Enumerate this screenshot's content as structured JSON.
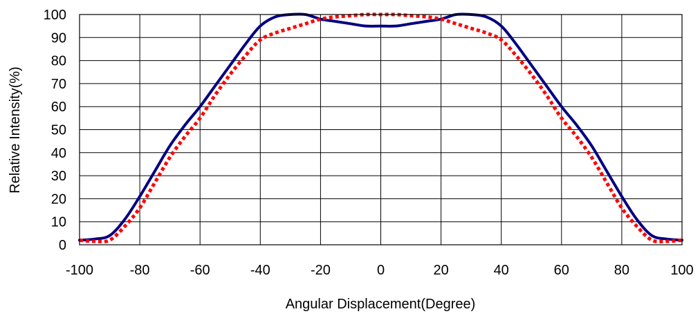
{
  "chart_data": {
    "type": "line",
    "title": "",
    "xlabel": "Angular Displacement(Degree)",
    "ylabel": "Relative Intensity(%)",
    "xlim": [
      -100,
      100
    ],
    "ylim": [
      0,
      100
    ],
    "xticks": [
      "-100",
      "-80",
      "-60",
      "-40",
      "-20",
      "0",
      "20",
      "40",
      "60",
      "80",
      "100"
    ],
    "yticks": [
      "0",
      "10",
      "20",
      "30",
      "40",
      "50",
      "60",
      "70",
      "80",
      "90",
      "100"
    ],
    "grid": true,
    "series": [
      {
        "color": "#000080",
        "style": "solid",
        "x": [
          -100,
          -95,
          -90,
          -85,
          -80,
          -75,
          -70,
          -65,
          -60,
          -55,
          -50,
          -45,
          -40,
          -35,
          -30,
          -25,
          -20,
          -15,
          -10,
          -5,
          0,
          5,
          10,
          15,
          20,
          25,
          30,
          35,
          40,
          45,
          50,
          55,
          60,
          65,
          70,
          75,
          80,
          85,
          90,
          95,
          100
        ],
        "y": [
          2,
          2.5,
          4,
          11,
          21,
          32,
          43,
          52,
          60,
          69,
          78,
          87,
          95,
          99,
          100,
          100,
          98,
          97,
          96,
          95,
          95,
          95,
          96,
          97,
          98,
          100,
          100,
          99,
          95,
          87,
          78,
          69,
          60,
          52,
          43,
          32,
          21,
          11,
          4,
          2.5,
          2
        ]
      },
      {
        "color": "#ff0000",
        "style": "dotted",
        "x": [
          -100,
          -95,
          -90,
          -85,
          -80,
          -75,
          -70,
          -65,
          -60,
          -55,
          -50,
          -45,
          -40,
          -35,
          -30,
          -25,
          -20,
          -15,
          -10,
          -5,
          0,
          5,
          10,
          15,
          20,
          25,
          30,
          35,
          40,
          45,
          50,
          55,
          60,
          65,
          70,
          75,
          80,
          85,
          90,
          95,
          100
        ],
        "y": [
          2,
          1.5,
          2,
          8,
          16,
          27,
          38,
          47,
          55,
          65,
          74,
          82,
          89,
          92,
          94,
          96,
          98,
          99,
          99.5,
          100,
          100,
          100,
          99.5,
          99,
          98,
          96,
          94,
          92,
          89,
          82,
          74,
          65,
          55,
          47,
          38,
          27,
          16,
          8,
          2,
          1.5,
          2
        ]
      }
    ]
  }
}
